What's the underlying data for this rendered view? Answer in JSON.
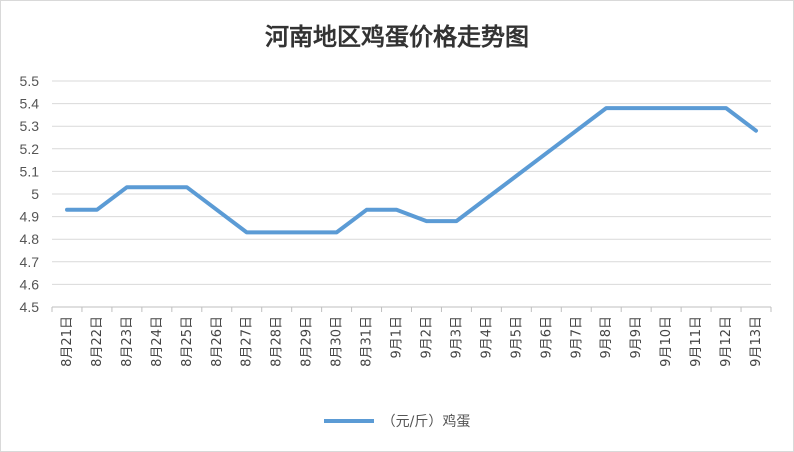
{
  "chart_data": {
    "type": "line",
    "title": "河南地区鸡蛋价格走势图",
    "xlabel": "",
    "ylabel": "",
    "ylim": [
      4.5,
      5.5
    ],
    "ytick_step": 0.1,
    "yticks": [
      "4.5",
      "4.6",
      "4.7",
      "4.8",
      "4.9",
      "5",
      "5.1",
      "5.2",
      "5.3",
      "5.4",
      "5.5"
    ],
    "grid": true,
    "legend_position": "bottom",
    "categories": [
      "8月21日",
      "8月22日",
      "8月23日",
      "8月24日",
      "8月25日",
      "8月26日",
      "8月27日",
      "8月28日",
      "8月29日",
      "8月30日",
      "8月31日",
      "9月1日",
      "9月2日",
      "9月3日",
      "9月4日",
      "9月5日",
      "9月6日",
      "9月7日",
      "9月8日",
      "9月9日",
      "9月10日",
      "9月11日",
      "9月12日",
      "9月13日"
    ],
    "series": [
      {
        "name": "（元/斤）鸡蛋",
        "color": "#5b9bd5",
        "values": [
          4.93,
          4.93,
          5.03,
          5.03,
          5.03,
          4.93,
          4.83,
          4.83,
          4.83,
          4.83,
          4.93,
          4.93,
          4.88,
          4.88,
          4.98,
          5.08,
          5.18,
          5.28,
          5.38,
          5.38,
          5.38,
          5.38,
          5.38,
          5.28
        ]
      }
    ]
  }
}
